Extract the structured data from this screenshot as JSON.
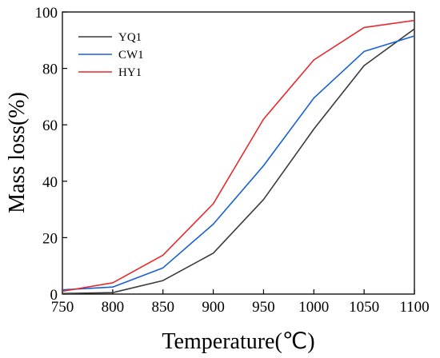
{
  "chart_data": {
    "type": "line",
    "title": "",
    "xlabel": "Temperature(℃)",
    "ylabel": "Mass loss(%)",
    "xlim": [
      750,
      1100
    ],
    "ylim": [
      0,
      100
    ],
    "x_ticks": [
      "750",
      "800",
      "850",
      "900",
      "950",
      "1000",
      "1050",
      "1100"
    ],
    "y_ticks": [
      "0",
      "20",
      "40",
      "60",
      "80",
      "100"
    ],
    "grid": false,
    "legend_position": "top-left",
    "x": [
      750,
      800,
      850,
      900,
      950,
      1000,
      1050,
      1100
    ],
    "series": [
      {
        "name": "YQ1",
        "color": "#3a3a3a",
        "values": [
          0.2,
          0.5,
          4.8,
          14.5,
          33.5,
          58.5,
          81.0,
          94.0
        ]
      },
      {
        "name": "CW1",
        "color": "#1560d4",
        "values": [
          1.5,
          2.5,
          9.3,
          24.8,
          45.5,
          69.5,
          86.0,
          91.5
        ]
      },
      {
        "name": "HY1",
        "color": "#e8282a",
        "values": [
          1.0,
          4.0,
          13.8,
          32.0,
          62.0,
          83.0,
          94.5,
          97.0
        ]
      }
    ]
  }
}
